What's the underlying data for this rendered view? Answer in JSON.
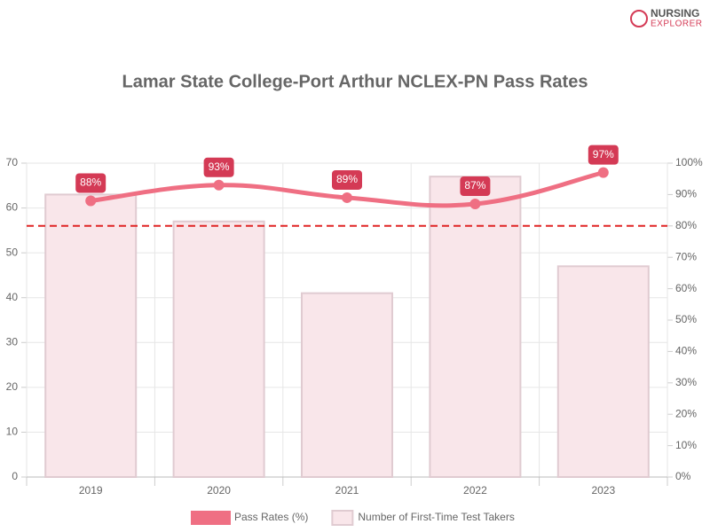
{
  "logo": {
    "line1": "NURSING",
    "line2": "EXPLORER"
  },
  "chart_data": {
    "type": "bar",
    "title": "Lamar State College-Port Arthur NCLEX-PN Pass Rates",
    "categories": [
      "2019",
      "2020",
      "2021",
      "2022",
      "2023"
    ],
    "series": [
      {
        "name": "Pass Rates (%)",
        "type": "line",
        "axis": "y2",
        "color": "#ef6f83",
        "label_color": "#d43a55",
        "values": [
          88,
          93,
          89,
          87,
          97
        ],
        "value_labels": [
          "88%",
          "93%",
          "89%",
          "87%",
          "97%"
        ]
      },
      {
        "name": "Number of First-Time Test Takers",
        "type": "bar",
        "color": "#f9e6ea",
        "border_color": "#e0cbd1",
        "values": [
          63,
          57,
          41,
          67,
          47
        ]
      }
    ],
    "ylim": [
      0,
      70
    ],
    "yticks": [
      0,
      10,
      20,
      30,
      40,
      50,
      60,
      70
    ],
    "y2lim": [
      0,
      100
    ],
    "y2ticks": [
      {
        "value": 0,
        "label": "0%"
      },
      {
        "value": 10,
        "label": "10%"
      },
      {
        "value": 20,
        "label": "20%"
      },
      {
        "value": 30,
        "label": "30%"
      },
      {
        "value": 40,
        "label": "40%"
      },
      {
        "value": 50,
        "label": "50%"
      },
      {
        "value": 60,
        "label": "60%"
      },
      {
        "value": 70,
        "label": "70%"
      },
      {
        "value": 80,
        "label": "80%"
      },
      {
        "value": 90,
        "label": "90%"
      },
      {
        "value": 100,
        "label": "100%"
      }
    ],
    "reference_line": {
      "value": 80,
      "axis": "y2",
      "color": "#e02424"
    },
    "grid": true,
    "legend": "bottom"
  }
}
